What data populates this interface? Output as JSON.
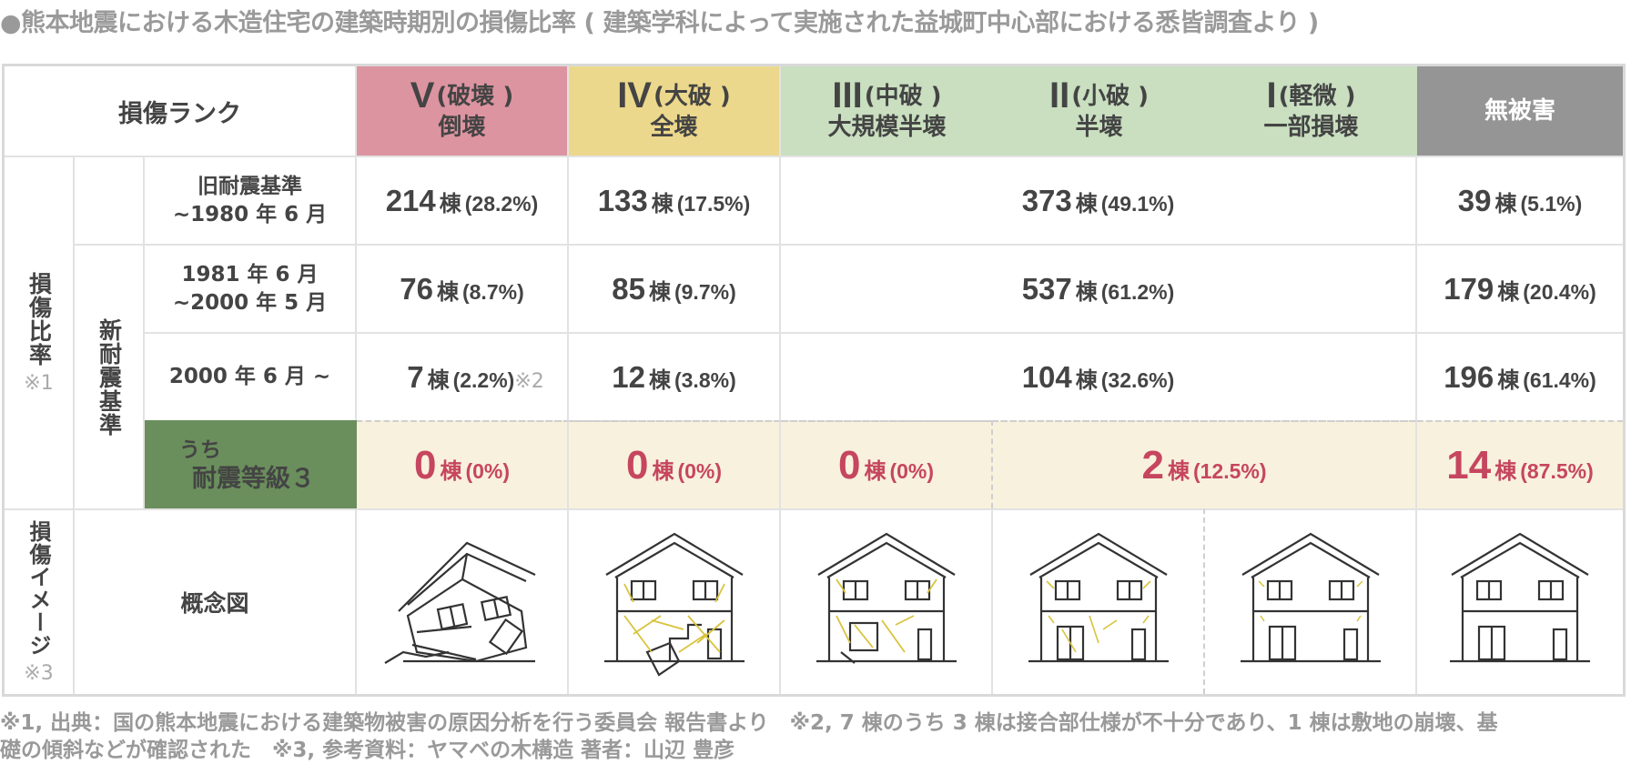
{
  "title": "●熊本地震における木造住宅の建築時期別の損傷比率 ( 建築学科によって実施された益城町中心部における悉皆調査より )",
  "header": {
    "rank_label": "損傷ランク",
    "ranks": [
      {
        "roman": "V",
        "top": "(破壊 )",
        "bottom": "倒壊",
        "color": "#dd94a1"
      },
      {
        "roman": "IV",
        "top": "(大破 )",
        "bottom": "全壊",
        "color": "#ecd88c"
      },
      {
        "roman": "III",
        "top": "(中破 )",
        "bottom": "大規模半壊",
        "color": "#c9dfc0"
      },
      {
        "roman": "II",
        "top": "(小破 )",
        "bottom": "半壊",
        "color": "#c9dfc0"
      },
      {
        "roman": "I",
        "top": "(軽微 )",
        "bottom": "一部損壊",
        "color": "#c9dfc0"
      },
      {
        "roman": "",
        "top": "",
        "bottom": "無被害",
        "color": "#959595"
      }
    ]
  },
  "side": {
    "damage_ratio": "損傷比率",
    "damage_ratio_note": "※1",
    "new_standard": "新耐震基準",
    "damage_image": "損傷イメージ",
    "damage_image_note": "※3"
  },
  "rows": [
    {
      "period_line1": "旧耐震基準",
      "period_line2": "~1980 年 6 月",
      "v": {
        "num": "214",
        "unit": "棟",
        "pct": "(28.2%)"
      },
      "iv": {
        "num": "133",
        "unit": "棟",
        "pct": "(17.5%)"
      },
      "iii_ii_i": {
        "num": "373",
        "unit": "棟",
        "pct": "(49.1%)"
      },
      "none": {
        "num": "39",
        "unit": "棟",
        "pct": "(5.1%)"
      }
    },
    {
      "period_line1": "1981 年 6 月",
      "period_line2": "~2000 年 5 月",
      "v": {
        "num": "76",
        "unit": "棟",
        "pct": "(8.7%)"
      },
      "iv": {
        "num": "85",
        "unit": "棟",
        "pct": "(9.7%)"
      },
      "iii_ii_i": {
        "num": "537",
        "unit": "棟",
        "pct": "(61.2%)"
      },
      "none": {
        "num": "179",
        "unit": "棟",
        "pct": "(20.4%)"
      }
    },
    {
      "period_line1": "2000 年 6 月 ~",
      "v": {
        "num": "7",
        "unit": "棟",
        "pct": "(2.2%)",
        "note": "※2"
      },
      "iv": {
        "num": "12",
        "unit": "棟",
        "pct": "(3.8%)"
      },
      "iii_ii_i": {
        "num": "104",
        "unit": "棟",
        "pct": "(32.6%)"
      },
      "none": {
        "num": "196",
        "unit": "棟",
        "pct": "(61.4%)"
      }
    }
  ],
  "grade3": {
    "label_line1": "うち",
    "label_line2": "耐震等級３",
    "label_bg": "#6a8f5c",
    "row_bg": "#f8f1dd",
    "v": {
      "num": "0",
      "unit": "棟",
      "pct": "(0%)"
    },
    "iv": {
      "num": "0",
      "unit": "棟",
      "pct": "(0%)"
    },
    "iii": {
      "num": "0",
      "unit": "棟",
      "pct": "(0%)"
    },
    "ii_i": {
      "num": "2",
      "unit": "棟",
      "pct": "(12.5%)"
    },
    "none": {
      "num": "14",
      "unit": "棟",
      "pct": "(87.5%)"
    }
  },
  "concept": {
    "label": "概念図",
    "icons": [
      "collapsed-house-icon",
      "heavily-damaged-house-icon",
      "moderately-damaged-house-icon",
      "slightly-damaged-house-icon",
      "minor-damage-house-icon",
      "undamaged-house-icon"
    ]
  },
  "footer": {
    "line1": "※1, 出典：国の熊本地震における建築物被害の原因分析を行う委員会 報告書より　※2, 7 棟のうち 3 棟は接合部仕様が不十分であり、1 棟は敷地の崩壊、基",
    "line2": "礎の傾斜などが確認された　※3, 参考資料：ヤマベの木構造 著者：山辺 豊彦"
  }
}
